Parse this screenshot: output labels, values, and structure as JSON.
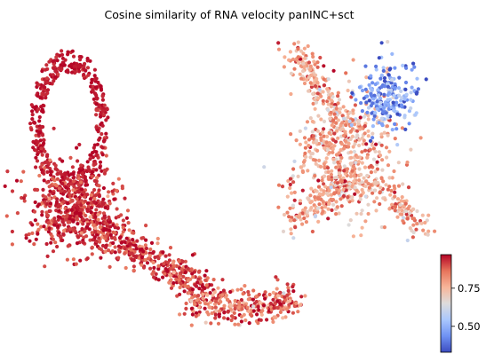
{
  "chart_data": {
    "type": "scatter",
    "title": "Cosine similarity of RNA velocity panINC+sct",
    "xlabel": "",
    "ylabel": "",
    "axes_visible": false,
    "grid": false,
    "legend": "none",
    "colormap": "coolwarm",
    "colorbar": {
      "range": [
        0.33,
        0.97
      ],
      "ticks": [
        0.5,
        0.75
      ],
      "tick_labels": [
        "0.50",
        "0.75"
      ],
      "stops": [
        "#3b4cc0",
        "#6f92f3",
        "#aac7fd",
        "#dddcdc",
        "#f7b599",
        "#e7745b",
        "#b40426"
      ]
    },
    "clusters": [
      {
        "name_hint": "left upper loop",
        "points": 430,
        "value_mean": 0.95,
        "value_sd": 0.02
      },
      {
        "name_hint": "left dense lower blob",
        "points": 520,
        "value_mean": 0.93,
        "value_sd": 0.04
      },
      {
        "name_hint": "lower diagonal band",
        "points": 380,
        "value_mean": 0.91,
        "value_sd": 0.06
      },
      {
        "name_hint": "bottom right tail",
        "points": 300,
        "value_mean": 0.87,
        "value_sd": 0.08
      },
      {
        "name_hint": "right central star",
        "points": 900,
        "value_mean": 0.78,
        "value_sd": 0.08
      },
      {
        "name_hint": "upper right blue lobe",
        "points": 230,
        "value_mean": 0.46,
        "value_sd": 0.1
      }
    ]
  }
}
